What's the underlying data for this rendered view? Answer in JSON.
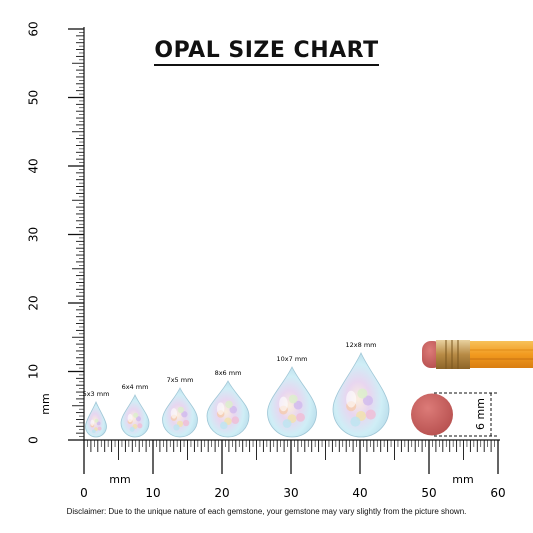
{
  "title": "OPAL SIZE CHART",
  "ruler_vertical": {
    "ticks": [
      "0",
      "10",
      "20",
      "30",
      "40",
      "50",
      "60"
    ],
    "unit": "mm"
  },
  "ruler_horizontal": {
    "ticks": [
      "0",
      "10",
      "20",
      "30",
      "40",
      "50",
      "60"
    ],
    "unit_left": "mm",
    "unit_right": "mm"
  },
  "stones": [
    {
      "label": "5x3 mm",
      "length_mm": 5,
      "width_mm": 3
    },
    {
      "label": "6x4 mm",
      "length_mm": 6,
      "width_mm": 4
    },
    {
      "label": "7x5 mm",
      "length_mm": 7,
      "width_mm": 5
    },
    {
      "label": "8x6 mm",
      "length_mm": 8,
      "width_mm": 6
    },
    {
      "label": "10x7 mm",
      "length_mm": 10,
      "width_mm": 7
    },
    {
      "label": "12x8 mm",
      "length_mm": 12,
      "width_mm": 8
    }
  ],
  "eraser": {
    "label": "6 mm"
  },
  "colors": {
    "eraser": "#c9605e",
    "pencil": "#f2a531",
    "ferrule": "#c9a25b",
    "opal_base": "#e6f2f8"
  },
  "disclaimer": "Disclaimer: Due to the unique nature of each gemstone, your gemstone may vary slightly from the picture shown."
}
